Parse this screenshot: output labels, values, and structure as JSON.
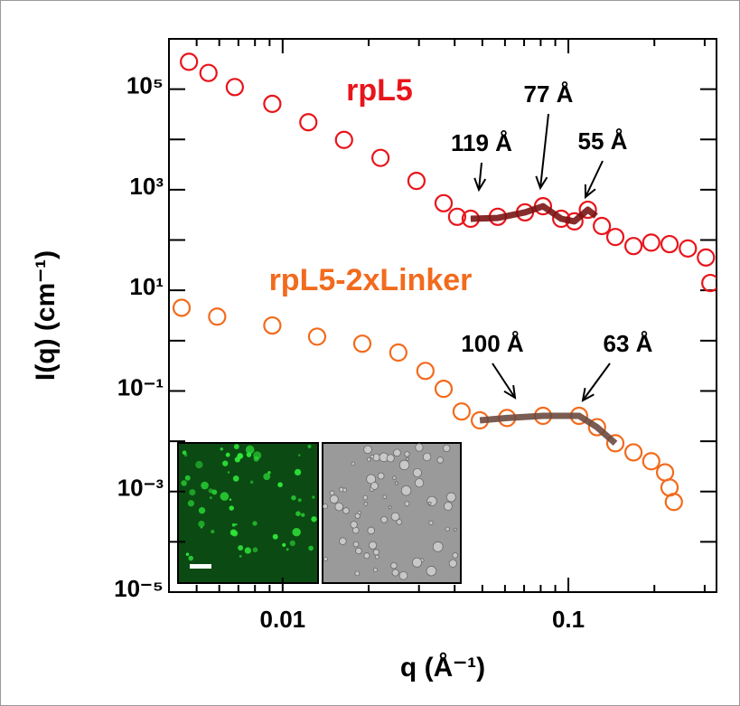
{
  "chart_data": {
    "type": "scatter",
    "xlabel": "q (Å⁻¹)",
    "ylabel": "I(q) (cm⁻¹)",
    "xlog": true,
    "ylog": true,
    "xlim": [
      0.004,
      0.33
    ],
    "ylim": [
      1e-05,
      1000000
    ],
    "xticks": [
      0.01,
      0.1
    ],
    "xminor": [
      0.005,
      0.006,
      0.007,
      0.008,
      0.009,
      0.02,
      0.03,
      0.04,
      0.05,
      0.06,
      0.07,
      0.08,
      0.09,
      0.2,
      0.3
    ],
    "yticks": [
      {
        "value": 100000,
        "label": "10⁵"
      },
      {
        "value": 1000,
        "label": "10³"
      },
      {
        "value": 10,
        "label": "10¹"
      },
      {
        "value": 0.1,
        "label": "10⁻¹"
      },
      {
        "value": 0.001,
        "label": "10⁻³"
      },
      {
        "value": 1e-05,
        "label": "10⁻⁵"
      }
    ],
    "yminor": [
      1000000,
      10000,
      100,
      1,
      0.01,
      0.0001
    ],
    "series": [
      {
        "name": "rpL5",
        "color": "#e8151b",
        "x": [
          0.0047,
          0.0055,
          0.0068,
          0.0092,
          0.0123,
          0.0164,
          0.022,
          0.0294,
          0.0366,
          0.0408,
          0.0455,
          0.0566,
          0.0705,
          0.0815,
          0.0944,
          0.105,
          0.117,
          0.131,
          0.146,
          0.169,
          0.195,
          0.226,
          0.262,
          0.303,
          0.314
        ],
        "values": [
          350000,
          210000,
          110000,
          51000,
          22000,
          9800,
          4300,
          1500,
          540,
          290,
          265,
          290,
          355,
          470,
          265,
          235,
          400,
          190,
          115,
          76,
          89,
          83,
          68,
          45,
          14
        ]
      },
      {
        "name": "rpL5-2xLinker",
        "color": "#f26b1d",
        "x": [
          0.00443,
          0.0059,
          0.0092,
          0.0132,
          0.019,
          0.0254,
          0.0316,
          0.0366,
          0.0423,
          0.049,
          0.061,
          0.0815,
          0.109,
          0.126,
          0.146,
          0.169,
          0.195,
          0.218,
          0.226,
          0.234
        ],
        "values": [
          4.5,
          3.0,
          2.0,
          1.2,
          0.87,
          0.58,
          0.25,
          0.11,
          0.039,
          0.026,
          0.029,
          0.032,
          0.032,
          0.019,
          0.0091,
          0.006,
          0.004,
          0.0024,
          0.0012,
          0.00062
        ]
      }
    ],
    "overlays": [
      {
        "color": "#7a1414",
        "x": [
          0.0455,
          0.0566,
          0.0705,
          0.0815,
          0.0944,
          0.105,
          0.117,
          0.125
        ],
        "values": [
          265,
          275,
          355,
          470,
          265,
          235,
          400,
          300
        ]
      },
      {
        "color": "#6b4a3f",
        "x": [
          0.049,
          0.061,
          0.0815,
          0.109,
          0.126,
          0.146
        ],
        "values": [
          0.026,
          0.029,
          0.032,
          0.032,
          0.019,
          0.0091
        ]
      }
    ],
    "annotations": [
      "119 Å",
      "77 Å",
      "55 Å",
      "100 Å",
      "63 Å"
    ]
  }
}
